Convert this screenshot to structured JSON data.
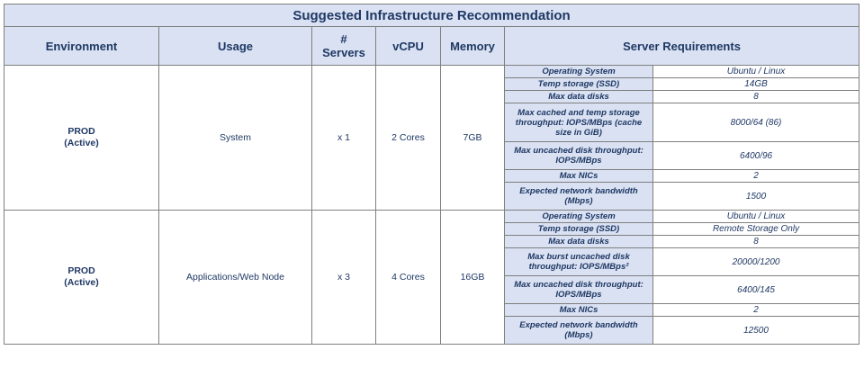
{
  "title": "Suggested Infrastructure Recommendation",
  "headers": {
    "environment": "Environment",
    "usage": "Usage",
    "servers": "# Servers",
    "vcpu": "vCPU",
    "memory": "Memory",
    "requirements": "Server Requirements"
  },
  "groups": [
    {
      "environment": "PROD",
      "environment_sub": "(Active)",
      "usage": "System",
      "servers": "x 1",
      "vcpu": "2 Cores",
      "memory": "7GB",
      "requirements": [
        {
          "key": "Operating System",
          "value": "Ubuntu / Linux"
        },
        {
          "key": "Temp storage (SSD)",
          "value": "14GB"
        },
        {
          "key": "Max data disks",
          "value": "8"
        },
        {
          "key": "Max cached and temp storage throughput: IOPS/MBps (cache size in GiB)",
          "value": "8000/64 (86)"
        },
        {
          "key": "Max uncached disk throughput: IOPS/MBps",
          "value": "6400/96"
        },
        {
          "key": "Max NICs",
          "value": "2"
        },
        {
          "key": "Expected network bandwidth (Mbps)",
          "value": "1500"
        }
      ]
    },
    {
      "environment": "PROD",
      "environment_sub": "(Active)",
      "usage": "Applications/Web Node",
      "servers": "x 3",
      "vcpu": "4 Cores",
      "memory": "16GB",
      "requirements": [
        {
          "key": "Operating System",
          "value": "Ubuntu / Linux"
        },
        {
          "key": "Temp storage (SSD)",
          "value": "Remote Storage Only"
        },
        {
          "key": "Max data disks",
          "value": "8"
        },
        {
          "key": "Max burst uncached disk throughput: IOPS/MBps²",
          "value": "20000/1200"
        },
        {
          "key": "Max uncached disk throughput: IOPS/MBps",
          "value": "6400/145"
        },
        {
          "key": "Max NICs",
          "value": "2"
        },
        {
          "key": "Expected network bandwidth (Mbps)",
          "value": "12500"
        }
      ]
    }
  ]
}
